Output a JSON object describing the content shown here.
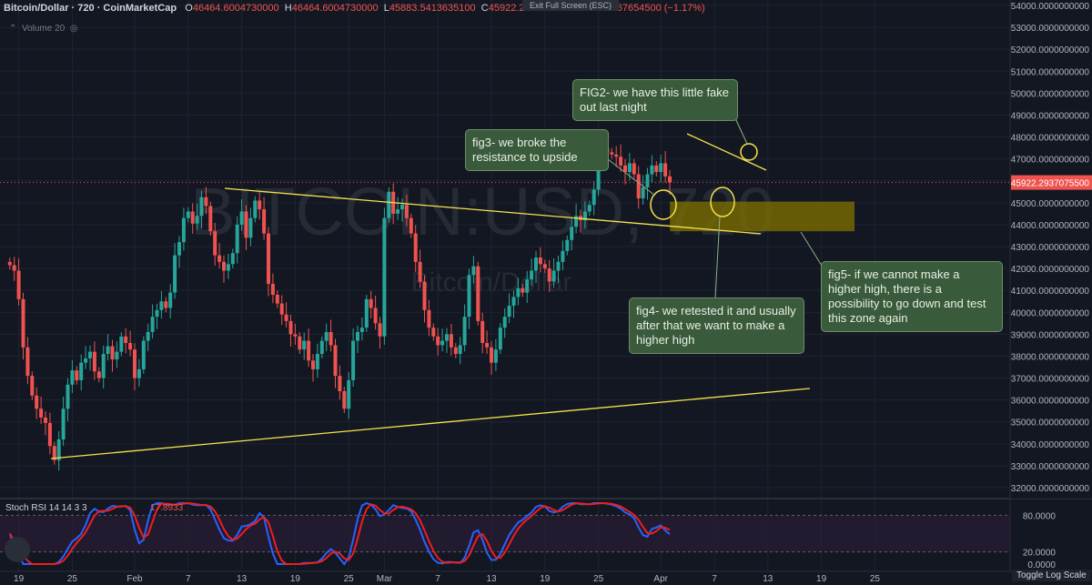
{
  "header": {
    "symbol": "Bitcoin/Dollar · 720 · CoinMarketCap",
    "o_label": "O",
    "o_value": "46464.6004730000",
    "h_label": "H",
    "h_value": "46464.6004730000",
    "l_label": "L",
    "l_value": "45883.5413635100",
    "c_label": "C",
    "c_value": "45922.2937075500",
    "change": "−542.3067654500 (−1.17%)",
    "exit_fullscreen": "Exit Full Screen (ESC)",
    "volume_label": "Volume 20"
  },
  "watermark": {
    "line1": "BITCOIN:USD, 720",
    "line2": "Bitcoin/Dollar"
  },
  "annotations": {
    "fig2": "FIG2- we have this little fake out last night",
    "fig3": "fig3- we broke the resistance to upside",
    "fig4": "fig4- we retested it and usually after that we want to make a higher high",
    "fig5": "fig5- if we cannot make a higher high, there is a possibility to go down and test this zone again"
  },
  "rsi": {
    "label": "Stoch RSI 14 14 3 3",
    "value": "17.8933",
    "ticks": [
      "80.0000",
      "20.0000",
      "0.0000"
    ]
  },
  "toggle_log_scale": "Toggle Log Scale",
  "colors": {
    "background": "#131722",
    "up": "#26a69a",
    "down": "#ef5350",
    "trendline": "#f5e54a",
    "annotation_bg": "#3a5a3c",
    "zone": "#7a6d00",
    "rsi_k": "#2962ff",
    "rsi_d": "#ef1e1e",
    "last_price_label": "#ef5350"
  },
  "chart_data": {
    "type": "candlestick",
    "title": "Bitcoin/Dollar · 720 · CoinMarketCap",
    "ylim": [
      32000,
      54000
    ],
    "y_ticks": [
      "32000.0000000000",
      "33000.0000000000",
      "34000.0000000000",
      "35000.0000000000",
      "36000.0000000000",
      "37000.0000000000",
      "38000.0000000000",
      "39000.0000000000",
      "40000.0000000000",
      "41000.0000000000",
      "42000.0000000000",
      "43000.0000000000",
      "44000.0000000000",
      "45000.0000000000",
      "46000.0000000000",
      "47000.0000000000",
      "48000.0000000000",
      "49000.0000000000",
      "50000.0000000000",
      "51000.0000000000",
      "52000.0000000000",
      "53000.0000000000",
      "54000.0000000000"
    ],
    "last_price": "45922.2937075500",
    "x_ticks": [
      "19",
      "25",
      "Feb",
      "7",
      "13",
      "19",
      "25",
      "Mar",
      "7",
      "13",
      "19",
      "25",
      "Apr",
      "7",
      "13",
      "19",
      "25"
    ],
    "x_tick_days": [
      -13,
      -7,
      0,
      6,
      12,
      18,
      24,
      28,
      34,
      40,
      46,
      52,
      59,
      65,
      71,
      77,
      83
    ],
    "candles_per_day": 2,
    "start_day": -14,
    "closes": [
      42150,
      41900,
      40600,
      38400,
      37100,
      36200,
      35600,
      35200,
      34950,
      33900,
      33250,
      34200,
      35600,
      36700,
      37350,
      36900,
      37700,
      37900,
      38200,
      37300,
      37000,
      38100,
      38450,
      37850,
      38200,
      38900,
      38600,
      38300,
      37000,
      37400,
      38700,
      39100,
      39800,
      40100,
      40500,
      40200,
      40900,
      42600,
      43200,
      44300,
      44600,
      44050,
      44400,
      45250,
      44850,
      43700,
      42600,
      42300,
      41900,
      42200,
      42700,
      44000,
      44600,
      43400,
      44300,
      45100,
      44700,
      43600,
      41300,
      40800,
      40400,
      39900,
      39600,
      39000,
      38900,
      38300,
      38700,
      37800,
      37400,
      38100,
      38700,
      39100,
      38500,
      37100,
      36400,
      35600,
      36900,
      38700,
      39100,
      39300,
      40600,
      40200,
      39500,
      38900,
      44300,
      45500,
      44500,
      44700,
      44900,
      44300,
      43600,
      42300,
      41400,
      40100,
      39300,
      38900,
      38500,
      38700,
      39000,
      38400,
      38100,
      38500,
      39800,
      41700,
      42100,
      39600,
      38600,
      38400,
      37700,
      38300,
      39300,
      39800,
      40300,
      40700,
      41100,
      40900,
      41500,
      41900,
      42500,
      42200,
      42000,
      41400,
      41900,
      42300,
      42800,
      43300,
      43900,
      44400,
      44200,
      44600,
      44900,
      45600,
      47000,
      47500,
      47300,
      47200,
      47100,
      46700,
      46400,
      46800,
      46300,
      45200,
      45700,
      46300,
      46700,
      46400,
      46800,
      46200,
      45922
    ]
  }
}
